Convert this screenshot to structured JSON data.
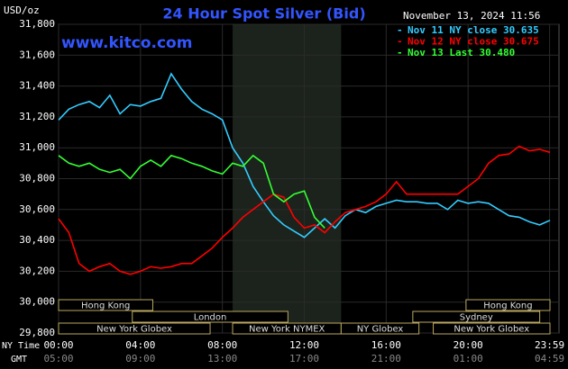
{
  "chart_data": {
    "type": "line",
    "title": "24 Hour Spot Silver (Bid)",
    "unit_label": "USD/oz",
    "timestamp": "November 13, 2024 11:56",
    "watermark": "www.kitco.com",
    "x_row_label": "NY Time",
    "x2_row_label": "GMT",
    "x": [
      0,
      0.5,
      1,
      1.5,
      2,
      2.5,
      3,
      3.5,
      4,
      4.5,
      5,
      5.5,
      6,
      6.5,
      7,
      7.5,
      8,
      8.5,
      9,
      9.5,
      10,
      10.5,
      11,
      11.5,
      12,
      12.5,
      13,
      13.5,
      14,
      14.5,
      15,
      15.5,
      16,
      16.5,
      17,
      17.5,
      18,
      18.5,
      19,
      19.5,
      20,
      20.5,
      21,
      21.5,
      22,
      22.5,
      23,
      23.5,
      24
    ],
    "series": [
      {
        "name": "Nov 11 NY close 30.635",
        "color": "#33ccff",
        "values": [
          31180,
          31250,
          31280,
          31300,
          31260,
          31340,
          31220,
          31280,
          31270,
          31300,
          31320,
          31480,
          31380,
          31300,
          31250,
          31220,
          31180,
          31000,
          30900,
          30750,
          30650,
          30560,
          30500,
          30460,
          30420,
          30480,
          30540,
          30480,
          30560,
          30600,
          30580,
          30620,
          30640,
          30660,
          30650,
          30650,
          30640,
          30640,
          30600,
          30660,
          30640,
          30650,
          30640,
          30600,
          30560,
          30550,
          30520,
          30500,
          30530
        ]
      },
      {
        "name": "Nov 12 NY close 30.675",
        "color": "#ff0000",
        "values": [
          30540,
          30450,
          30250,
          30200,
          30230,
          30250,
          30200,
          30180,
          30200,
          30230,
          30220,
          30230,
          30250,
          30250,
          30300,
          30350,
          30420,
          30480,
          30550,
          30600,
          30650,
          30700,
          30680,
          30550,
          30480,
          30500,
          30450,
          30520,
          30580,
          30600,
          30620,
          30650,
          30700,
          30780,
          30700,
          30700,
          30700,
          30700,
          30700,
          30700,
          30750,
          30800,
          30900,
          30950,
          30960,
          31010,
          30980,
          30990,
          30970
        ]
      },
      {
        "name": "Nov 13 Last 30.480",
        "color": "#33ff33",
        "values": [
          30950,
          30900,
          30880,
          30900,
          30860,
          30840,
          30860,
          30800,
          30880,
          30920,
          30880,
          30950,
          30930,
          30900,
          30880,
          30850,
          30830,
          30900,
          30880,
          30950,
          30900,
          30700,
          30650,
          30700,
          30720,
          30550,
          30480,
          null,
          null,
          null,
          null,
          null,
          null,
          null,
          null,
          null,
          null,
          null,
          null,
          null,
          null,
          null,
          null,
          null,
          null,
          null,
          null,
          null,
          null
        ]
      }
    ],
    "xlim": [
      0,
      24
    ],
    "xticks": [
      {
        "value": 0,
        "label": "00:00"
      },
      {
        "value": 4,
        "label": "04:00"
      },
      {
        "value": 8,
        "label": "08:00"
      },
      {
        "value": 12,
        "label": "12:00"
      },
      {
        "value": 16,
        "label": "16:00"
      },
      {
        "value": 20,
        "label": "20:00"
      },
      {
        "value": 23.983,
        "label": "23:59"
      }
    ],
    "x2ticks": [
      "05:00",
      "09:00",
      "13:00",
      "17:00",
      "21:00",
      "01:00",
      "04:59"
    ],
    "ylim": [
      29800,
      31800
    ],
    "yticks": [
      {
        "value": 29800,
        "label": "29,800"
      },
      {
        "value": 30000,
        "label": "30,000"
      },
      {
        "value": 30200,
        "label": "30,200"
      },
      {
        "value": 30400,
        "label": "30,400"
      },
      {
        "value": 30600,
        "label": "30,600"
      },
      {
        "value": 30800,
        "label": "30,800"
      },
      {
        "value": 31000,
        "label": "31,000"
      },
      {
        "value": 31200,
        "label": "31,200"
      },
      {
        "value": 31400,
        "label": "31,400"
      },
      {
        "value": 31600,
        "label": "31,600"
      },
      {
        "value": 31800,
        "label": "31,800"
      }
    ],
    "grid": true,
    "sessions": [
      {
        "name": "Hong Kong",
        "start": 0,
        "end": 4.6,
        "row": 0
      },
      {
        "name": "Hong Kong",
        "start": 19.9,
        "end": 24,
        "row": 0
      },
      {
        "name": "London",
        "start": 3.6,
        "end": 11.2,
        "row": 1
      },
      {
        "name": "Sydney",
        "start": 17.3,
        "end": 23.5,
        "row": 1
      },
      {
        "name": "New York Globex",
        "start": 0,
        "end": 7.4,
        "row": 2
      },
      {
        "name": "New York NYMEX",
        "start": 8.5,
        "end": 13.8,
        "row": 2,
        "highlight": true
      },
      {
        "name": "NY Globex",
        "start": 13.8,
        "end": 17.6,
        "row": 2
      },
      {
        "name": "New York Globex",
        "start": 18.3,
        "end": 24,
        "row": 2
      }
    ]
  }
}
